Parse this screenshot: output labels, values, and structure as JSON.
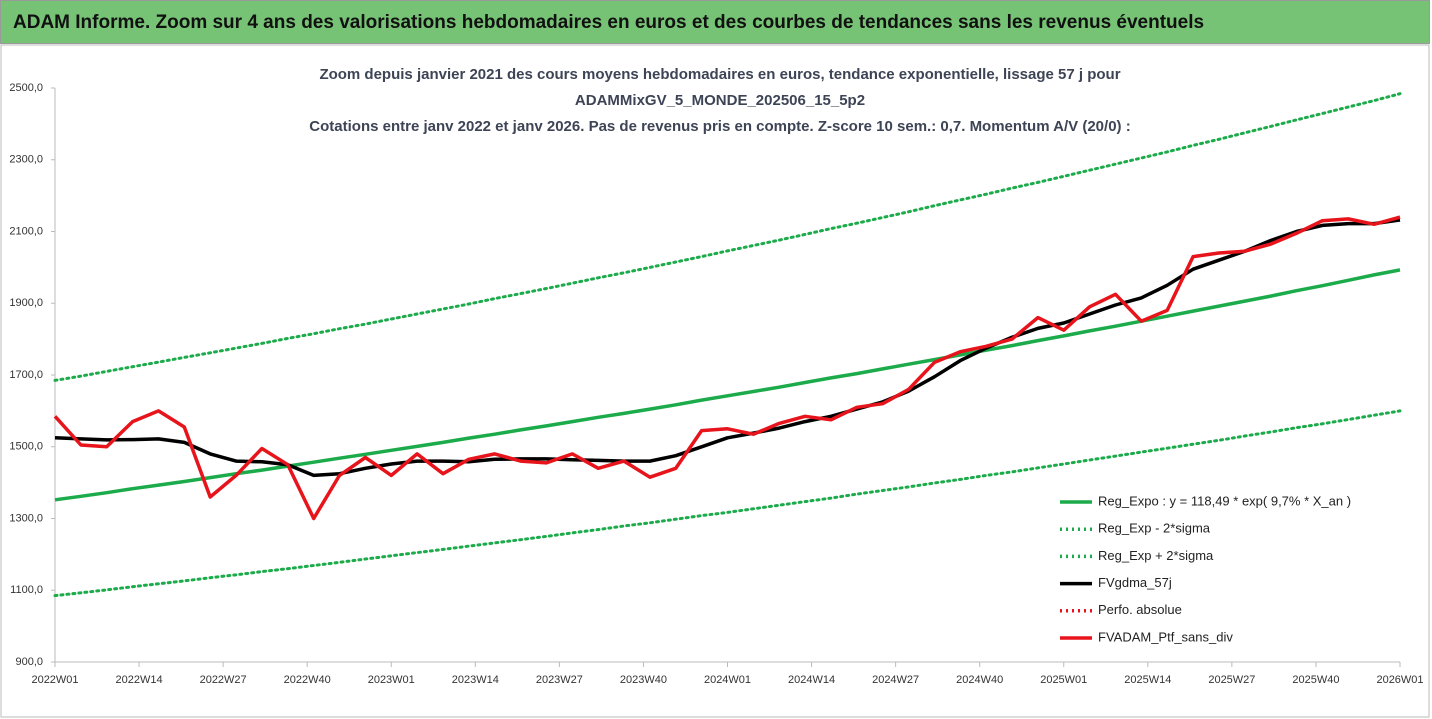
{
  "header": {
    "title": "ADAM Informe. Zoom sur 4 ans des valorisations hebdomadaires en euros et des courbes de tendances sans les revenus éventuels"
  },
  "chart_data": {
    "type": "line",
    "title": [
      "Zoom depuis janvier 2021 des cours moyens hebdomadaires  en euros, tendance exponentielle, lissage 57 j pour",
      "ADAMMixGV_5_MONDE_202506_15_5p2",
      "Cotations  entre janv 2022 et janv 2026. Pas de revenus pris en compte. Z-score 10 sem.: 0,7. Momentum A/V (20/0) :"
    ],
    "x": [
      0,
      4,
      8,
      12,
      16,
      20,
      24,
      28,
      32,
      36,
      40,
      44,
      48,
      52,
      56,
      60,
      64,
      68,
      72,
      76,
      80,
      84,
      88,
      92,
      96,
      100,
      104,
      108,
      112,
      116,
      120,
      124,
      128,
      132,
      136,
      140,
      144,
      148,
      152,
      156,
      160,
      164,
      168,
      172,
      176,
      180,
      184,
      188,
      192,
      196,
      200,
      204,
      208
    ],
    "xlim": [
      0,
      208
    ],
    "xticks": [
      {
        "value": 0,
        "label": "2022W01"
      },
      {
        "value": 13,
        "label": "2022W14"
      },
      {
        "value": 26,
        "label": "2022W27"
      },
      {
        "value": 39,
        "label": "2022W40"
      },
      {
        "value": 52,
        "label": "2023W01"
      },
      {
        "value": 65,
        "label": "2023W14"
      },
      {
        "value": 78,
        "label": "2023W27"
      },
      {
        "value": 91,
        "label": "2023W40"
      },
      {
        "value": 104,
        "label": "2024W01"
      },
      {
        "value": 117,
        "label": "2024W14"
      },
      {
        "value": 130,
        "label": "2024W27"
      },
      {
        "value": 143,
        "label": "2024W40"
      },
      {
        "value": 156,
        "label": "2025W01"
      },
      {
        "value": 169,
        "label": "2025W14"
      },
      {
        "value": 182,
        "label": "2025W27"
      },
      {
        "value": 195,
        "label": "2025W40"
      },
      {
        "value": 208,
        "label": "2026W01"
      }
    ],
    "ylim": [
      900,
      2500
    ],
    "yticks": [
      {
        "value": 900,
        "label": "900,0"
      },
      {
        "value": 1100,
        "label": "1100,0"
      },
      {
        "value": 1300,
        "label": "1300,0"
      },
      {
        "value": 1500,
        "label": "1500,0"
      },
      {
        "value": 1700,
        "label": "1700,0"
      },
      {
        "value": 1900,
        "label": "1900,0"
      },
      {
        "value": 2100,
        "label": "2100,0"
      },
      {
        "value": 2300,
        "label": "2300,0"
      },
      {
        "value": 2500,
        "label": "2500,0"
      }
    ],
    "grid": false,
    "legend": "lower-right",
    "series": [
      {
        "name": "Reg_Expo : y = 118,49 * exp( 9,7% *  X_an )",
        "color": "#1cab4a",
        "style": "solid",
        "values": [
          1352,
          1362,
          1372,
          1383,
          1393,
          1403,
          1414,
          1425,
          1435,
          1446,
          1457,
          1468,
          1479,
          1490,
          1501,
          1512,
          1524,
          1535,
          1547,
          1558,
          1570,
          1582,
          1593,
          1605,
          1617,
          1630,
          1642,
          1654,
          1666,
          1679,
          1692,
          1704,
          1717,
          1730,
          1743,
          1756,
          1769,
          1782,
          1796,
          1809,
          1823,
          1836,
          1850,
          1864,
          1878,
          1892,
          1906,
          1920,
          1935,
          1949,
          1964,
          1979,
          1993
        ]
      },
      {
        "name": "Reg_Exp - 2*sigma",
        "color": "#1cab4a",
        "style": "dotted",
        "values": [
          1085,
          1093,
          1101,
          1110,
          1118,
          1126,
          1135,
          1143,
          1152,
          1160,
          1169,
          1178,
          1187,
          1196,
          1205,
          1214,
          1223,
          1232,
          1241,
          1250,
          1260,
          1269,
          1279,
          1288,
          1298,
          1308,
          1317,
          1327,
          1337,
          1347,
          1357,
          1368,
          1378,
          1388,
          1399,
          1409,
          1420,
          1430,
          1441,
          1452,
          1463,
          1474,
          1485,
          1496,
          1507,
          1518,
          1530,
          1541,
          1553,
          1564,
          1576,
          1588,
          1600
        ]
      },
      {
        "name": "Reg_Exp + 2*sigma",
        "color": "#1cab4a",
        "style": "dotted",
        "values": [
          1685,
          1697,
          1710,
          1723,
          1736,
          1749,
          1762,
          1775,
          1788,
          1802,
          1815,
          1829,
          1842,
          1856,
          1870,
          1884,
          1898,
          1913,
          1927,
          1941,
          1956,
          1971,
          1985,
          2000,
          2015,
          2030,
          2046,
          2061,
          2076,
          2092,
          2108,
          2123,
          2139,
          2155,
          2172,
          2188,
          2204,
          2221,
          2237,
          2254,
          2271,
          2288,
          2305,
          2322,
          2340,
          2357,
          2375,
          2393,
          2411,
          2429,
          2447,
          2465,
          2484
        ]
      },
      {
        "name": "FVgdma_57j",
        "color": "#000000",
        "style": "solid",
        "values": [
          1525,
          1522,
          1519,
          1520,
          1522,
          1512,
          1480,
          1460,
          1458,
          1450,
          1420,
          1425,
          1440,
          1452,
          1460,
          1460,
          1458,
          1465,
          1466,
          1466,
          1464,
          1462,
          1460,
          1460,
          1475,
          1500,
          1525,
          1538,
          1552,
          1570,
          1585,
          1605,
          1625,
          1655,
          1695,
          1740,
          1775,
          1805,
          1830,
          1845,
          1870,
          1895,
          1915,
          1950,
          1995,
          2020,
          2045,
          2075,
          2100,
          2117,
          2122,
          2122,
          2132
        ]
      },
      {
        "name": "Perfo. absolue",
        "color": "#e8141b",
        "style": "dotted",
        "values": [
          null,
          null,
          null,
          null,
          null,
          null,
          null,
          null,
          null,
          null,
          null,
          null,
          null,
          null,
          null,
          null,
          null,
          null,
          null,
          null,
          null,
          null,
          null,
          null,
          null,
          null,
          null,
          null,
          null,
          null,
          null,
          null,
          null,
          null,
          null,
          null,
          null,
          null,
          null,
          null,
          null,
          null,
          null,
          null,
          null,
          null,
          null,
          null,
          null,
          null,
          null,
          null,
          null
        ]
      },
      {
        "name": "FVADAM_Ptf_sans_div",
        "color": "#e8141b",
        "style": "solid",
        "values": [
          1585,
          1505,
          1500,
          1570,
          1600,
          1555,
          1360,
          1420,
          1495,
          1450,
          1300,
          1420,
          1470,
          1420,
          1480,
          1425,
          1465,
          1480,
          1460,
          1455,
          1480,
          1440,
          1460,
          1415,
          1440,
          1545,
          1550,
          1535,
          1565,
          1585,
          1575,
          1610,
          1620,
          1660,
          1735,
          1765,
          1780,
          1800,
          1860,
          1825,
          1890,
          1925,
          1850,
          1880,
          2030,
          2040,
          2045,
          2065,
          2095,
          2130,
          2135,
          2120,
          2140
        ]
      }
    ]
  }
}
